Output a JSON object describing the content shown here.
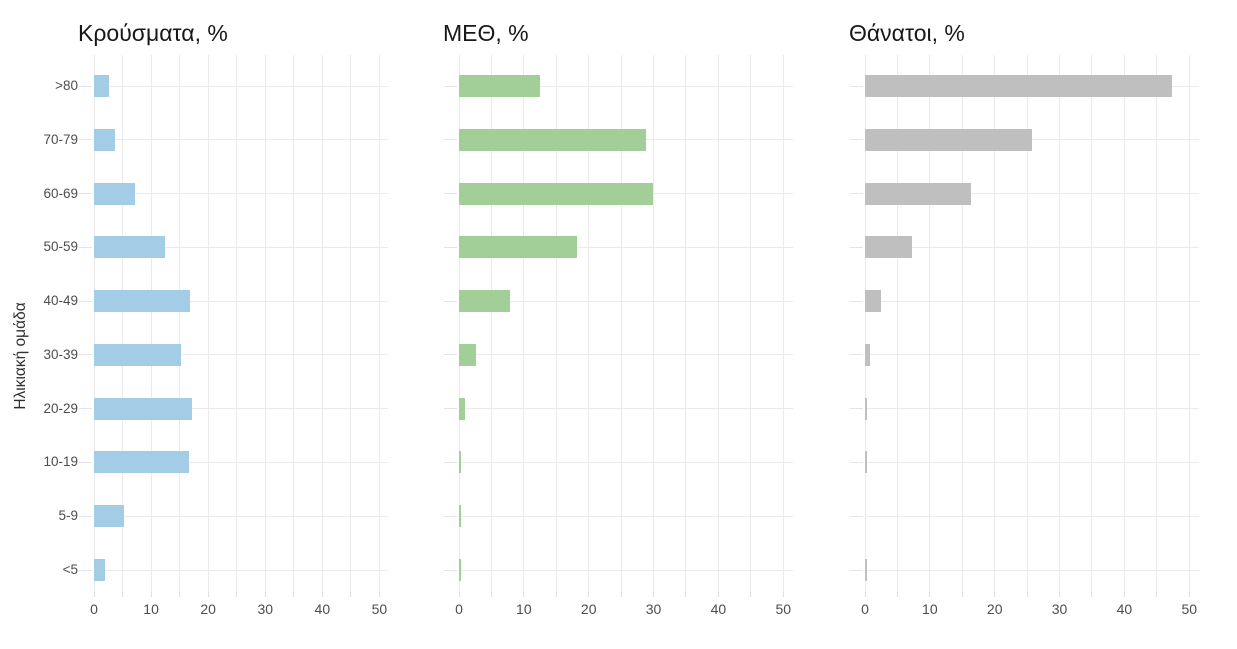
{
  "figure": {
    "background": "#ffffff",
    "y_axis_title": "Ηλικιακή ομάδα",
    "grid_color": "#eaeaea",
    "axis_text_color": "#4d4d4d",
    "title_color": "#181818"
  },
  "chart_data": [
    {
      "type": "bar",
      "orientation": "horizontal",
      "title": "Κρούσματα, %",
      "bar_color": "#a3cde6",
      "categories": [
        ">80",
        "70-79",
        "60-69",
        "50-59",
        "40-49",
        "30-39",
        "20-29",
        "10-19",
        "5-9",
        "<5"
      ],
      "values": [
        2.6,
        3.7,
        7.1,
        12.5,
        16.9,
        15.3,
        17.2,
        16.6,
        5.2,
        1.9
      ],
      "xlabel": "",
      "ylabel": "Ηλικιακή ομάδα",
      "xlim": [
        0,
        51.5
      ],
      "x_ticks": [
        0,
        10,
        20,
        30,
        40,
        50
      ],
      "x_minor_step": 5,
      "grid": true,
      "legend": "none",
      "show_category_labels": true
    },
    {
      "type": "bar",
      "orientation": "horizontal",
      "title": "ΜΕΘ, %",
      "bar_color": "#a2cf98",
      "categories": [
        ">80",
        "70-79",
        "60-69",
        "50-59",
        "40-49",
        "30-39",
        "20-29",
        "10-19",
        "5-9",
        "<5"
      ],
      "values": [
        12.5,
        28.8,
        29.9,
        18.2,
        7.8,
        2.6,
        1.0,
        0.3,
        0.1,
        0.1
      ],
      "xlabel": "",
      "ylabel": "",
      "xlim": [
        0,
        51.5
      ],
      "x_ticks": [
        0,
        10,
        20,
        30,
        40,
        50
      ],
      "x_minor_step": 5,
      "grid": true,
      "legend": "none",
      "show_category_labels": false
    },
    {
      "type": "bar",
      "orientation": "horizontal",
      "title": "Θάνατοι, %",
      "bar_color": "#bfbfbf",
      "categories": [
        ">80",
        "70-79",
        "60-69",
        "50-59",
        "40-49",
        "30-39",
        "20-29",
        "10-19",
        "5-9",
        "<5"
      ],
      "values": [
        47.3,
        25.8,
        16.3,
        7.3,
        2.4,
        0.7,
        0.1,
        0.1,
        0.0,
        0.1
      ],
      "xlabel": "",
      "ylabel": "",
      "xlim": [
        0,
        51.5
      ],
      "x_ticks": [
        0,
        10,
        20,
        30,
        40,
        50
      ],
      "x_minor_step": 5,
      "grid": true,
      "legend": "none",
      "show_category_labels": false
    }
  ]
}
